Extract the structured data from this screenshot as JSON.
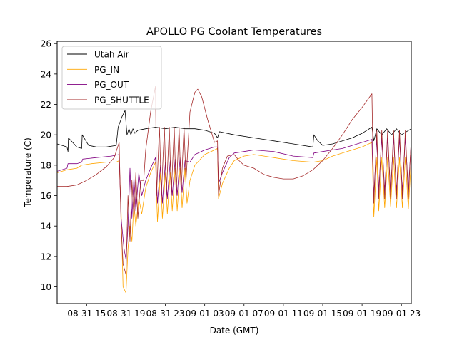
{
  "chart_data": {
    "type": "line",
    "title": "APOLLO PG Coolant Temperatures",
    "xlabel": "Date (GMT)",
    "ylabel": "Temperature (C)",
    "xlim_hours_from_0831_0000": [
      12,
      48
    ],
    "ylim": [
      8.9,
      26.15
    ],
    "grid": false,
    "legend_placement": "top-left",
    "x_ticks": [
      {
        "hour": 15,
        "label": "08-31 15"
      },
      {
        "hour": 19,
        "label": "08-31 19"
      },
      {
        "hour": 23,
        "label": "08-31 23"
      },
      {
        "hour": 27,
        "label": "09-01 03"
      },
      {
        "hour": 31,
        "label": "09-01 07"
      },
      {
        "hour": 35,
        "label": "09-01 11"
      },
      {
        "hour": 39,
        "label": "09-01 15"
      },
      {
        "hour": 43,
        "label": "09-01 19"
      },
      {
        "hour": 47,
        "label": "09-01 23"
      }
    ],
    "y_ticks": [
      10,
      12,
      14,
      16,
      18,
      20,
      22,
      24,
      26
    ],
    "series": [
      {
        "name": "Utah Air",
        "color": "#000000",
        "points": [
          [
            12,
            19.4
          ],
          [
            13,
            19.2
          ],
          [
            13.1,
            18.9
          ],
          [
            13.15,
            19.8
          ],
          [
            14,
            19.2
          ],
          [
            14.5,
            19.1
          ],
          [
            14.55,
            20.0
          ],
          [
            15.2,
            19.3
          ],
          [
            16,
            19.2
          ],
          [
            17,
            19.2
          ],
          [
            18,
            19.3
          ],
          [
            18.2,
            20.5
          ],
          [
            18.6,
            21.2
          ],
          [
            18.9,
            21.6
          ],
          [
            19.1,
            20.0
          ],
          [
            19.3,
            20.4
          ],
          [
            19.5,
            20.0
          ],
          [
            19.7,
            20.4
          ],
          [
            19.9,
            20.1
          ],
          [
            20.2,
            20.3
          ],
          [
            21,
            20.4
          ],
          [
            22,
            20.5
          ],
          [
            23,
            20.4
          ],
          [
            24,
            20.5
          ],
          [
            25,
            20.4
          ],
          [
            26,
            20.4
          ],
          [
            27,
            20.3
          ],
          [
            27.5,
            20.2
          ],
          [
            28,
            20.1
          ],
          [
            28.3,
            19.8
          ],
          [
            28.5,
            20.2
          ],
          [
            30,
            20.0
          ],
          [
            32,
            19.8
          ],
          [
            34,
            19.6
          ],
          [
            36,
            19.4
          ],
          [
            37,
            19.3
          ],
          [
            38,
            19.2
          ],
          [
            38.1,
            20.0
          ],
          [
            38.5,
            19.6
          ],
          [
            39,
            19.3
          ],
          [
            40,
            19.4
          ],
          [
            41,
            19.6
          ],
          [
            42,
            19.8
          ],
          [
            43,
            20.1
          ],
          [
            44,
            20.5
          ],
          [
            44.2,
            19.6
          ],
          [
            44.5,
            20.4
          ],
          [
            45,
            20.0
          ],
          [
            45.5,
            20.4
          ],
          [
            46,
            20.0
          ],
          [
            46.5,
            20.4
          ],
          [
            47,
            20.0
          ],
          [
            48,
            20.4
          ]
        ]
      },
      {
        "name": "PG_IN",
        "color": "#ffa500",
        "points": [
          [
            12,
            17.5
          ],
          [
            13,
            17.7
          ],
          [
            14,
            17.8
          ],
          [
            14.5,
            18.0
          ],
          [
            15.5,
            18.1
          ],
          [
            17,
            18.2
          ],
          [
            18,
            18.2
          ],
          [
            18.3,
            18.3
          ],
          [
            18.5,
            15.0
          ],
          [
            18.7,
            10.0
          ],
          [
            19.0,
            9.6
          ],
          [
            19.2,
            12.5
          ],
          [
            19.4,
            14.0
          ],
          [
            19.6,
            13.0
          ],
          [
            19.8,
            15.5
          ],
          [
            20.0,
            14.0
          ],
          [
            20.3,
            15.8
          ],
          [
            20.6,
            14.8
          ],
          [
            21,
            16.5
          ],
          [
            21.5,
            17.5
          ],
          [
            22,
            18.2
          ],
          [
            22.2,
            14.3
          ],
          [
            22.5,
            17.5
          ],
          [
            22.7,
            14.5
          ],
          [
            23,
            17.5
          ],
          [
            23.2,
            14.8
          ],
          [
            23.5,
            17.5
          ],
          [
            23.7,
            15.0
          ],
          [
            24,
            17.8
          ],
          [
            24.2,
            15.0
          ],
          [
            24.5,
            17.8
          ],
          [
            24.7,
            15.2
          ],
          [
            25,
            17.8
          ],
          [
            25.2,
            15.5
          ],
          [
            25.5,
            17.0
          ],
          [
            26,
            18.0
          ],
          [
            27,
            18.7
          ],
          [
            28,
            19.0
          ],
          [
            28.3,
            19.1
          ],
          [
            28.4,
            15.8
          ],
          [
            28.8,
            16.8
          ],
          [
            29.5,
            17.8
          ],
          [
            30,
            18.3
          ],
          [
            31,
            18.6
          ],
          [
            32,
            18.7
          ],
          [
            34,
            18.5
          ],
          [
            36,
            18.3
          ],
          [
            38,
            18.2
          ],
          [
            39,
            18.3
          ],
          [
            40,
            18.6
          ],
          [
            41,
            18.8
          ],
          [
            42,
            19.0
          ],
          [
            43,
            19.2
          ],
          [
            44,
            19.5
          ],
          [
            44.2,
            14.6
          ],
          [
            44.5,
            18.5
          ],
          [
            44.7,
            15.0
          ],
          [
            45,
            18.5
          ],
          [
            45.3,
            15.2
          ],
          [
            45.6,
            18.5
          ],
          [
            45.9,
            15.3
          ],
          [
            46.2,
            18.5
          ],
          [
            46.5,
            15.2
          ],
          [
            46.8,
            18.5
          ],
          [
            47.1,
            15.2
          ],
          [
            47.4,
            18.5
          ],
          [
            47.7,
            15.1
          ],
          [
            48,
            18.4
          ]
        ]
      },
      {
        "name": "PG_OUT",
        "color": "#800080",
        "points": [
          [
            12,
            17.6
          ],
          [
            13,
            17.8
          ],
          [
            13.1,
            18.1
          ],
          [
            14,
            18.1
          ],
          [
            14.5,
            18.2
          ],
          [
            14.6,
            18.4
          ],
          [
            16,
            18.5
          ],
          [
            17.5,
            18.6
          ],
          [
            18.3,
            18.7
          ],
          [
            18.5,
            14.5
          ],
          [
            18.8,
            12.5
          ],
          [
            19.0,
            11.8
          ],
          [
            19.2,
            14.0
          ],
          [
            19.4,
            17.8
          ],
          [
            19.6,
            14.5
          ],
          [
            19.8,
            17.2
          ],
          [
            20.0,
            15.0
          ],
          [
            20.3,
            17.5
          ],
          [
            20.6,
            16.0
          ],
          [
            21,
            17.0
          ],
          [
            21.5,
            17.8
          ],
          [
            22,
            18.5
          ],
          [
            22.2,
            15.5
          ],
          [
            22.5,
            18.0
          ],
          [
            22.7,
            15.5
          ],
          [
            23,
            18.2
          ],
          [
            23.2,
            15.8
          ],
          [
            23.5,
            18.3
          ],
          [
            23.7,
            16.0
          ],
          [
            24,
            18.4
          ],
          [
            24.2,
            16.0
          ],
          [
            24.5,
            18.5
          ],
          [
            24.7,
            16.2
          ],
          [
            25,
            18.3
          ],
          [
            25.5,
            18.2
          ],
          [
            26,
            18.7
          ],
          [
            27,
            19.0
          ],
          [
            28,
            19.2
          ],
          [
            28.3,
            19.2
          ],
          [
            28.4,
            16.8
          ],
          [
            28.8,
            17.5
          ],
          [
            29.5,
            18.5
          ],
          [
            30,
            18.8
          ],
          [
            31,
            18.9
          ],
          [
            32,
            19.0
          ],
          [
            34,
            18.9
          ],
          [
            36,
            18.6
          ],
          [
            38,
            18.5
          ],
          [
            38.1,
            18.8
          ],
          [
            39,
            18.9
          ],
          [
            40,
            19.0
          ],
          [
            41,
            19.1
          ],
          [
            42,
            19.3
          ],
          [
            43,
            19.5
          ],
          [
            44,
            19.7
          ],
          [
            44.2,
            16.0
          ],
          [
            44.5,
            19.8
          ],
          [
            44.7,
            16.3
          ],
          [
            45,
            19.8
          ],
          [
            45.3,
            16.3
          ],
          [
            45.6,
            19.8
          ],
          [
            45.9,
            16.3
          ],
          [
            46.2,
            19.8
          ],
          [
            46.5,
            16.3
          ],
          [
            46.8,
            19.8
          ],
          [
            47.1,
            16.3
          ],
          [
            47.4,
            19.8
          ],
          [
            47.7,
            16.3
          ],
          [
            48,
            19.6
          ]
        ]
      },
      {
        "name": "PG_SHUTTLE",
        "color": "#a52a2a",
        "points": [
          [
            12,
            16.6
          ],
          [
            13,
            16.6
          ],
          [
            14,
            16.7
          ],
          [
            15,
            17.0
          ],
          [
            16,
            17.4
          ],
          [
            17,
            17.9
          ],
          [
            17.8,
            18.5
          ],
          [
            18.3,
            19.5
          ],
          [
            18.5,
            14.0
          ],
          [
            18.7,
            11.5
          ],
          [
            19.0,
            10.8
          ],
          [
            19.2,
            16.0
          ],
          [
            19.4,
            13.0
          ],
          [
            19.6,
            17.0
          ],
          [
            19.8,
            14.5
          ],
          [
            20.0,
            17.5
          ],
          [
            20.2,
            14.5
          ],
          [
            20.5,
            17.0
          ],
          [
            20.8,
            17.0
          ],
          [
            21,
            19.0
          ],
          [
            21.5,
            21.5
          ],
          [
            22,
            23.2
          ],
          [
            22.1,
            16.0
          ],
          [
            22.4,
            20.5
          ],
          [
            22.6,
            16.0
          ],
          [
            22.9,
            20.5
          ],
          [
            23.1,
            16.0
          ],
          [
            23.4,
            20.5
          ],
          [
            23.6,
            16.0
          ],
          [
            23.9,
            20.5
          ],
          [
            24.1,
            16.0
          ],
          [
            24.4,
            20.5
          ],
          [
            24.6,
            16.2
          ],
          [
            24.9,
            20.5
          ],
          [
            25.1,
            17.0
          ],
          [
            25.5,
            21.5
          ],
          [
            26,
            22.8
          ],
          [
            26.3,
            23.0
          ],
          [
            26.7,
            22.5
          ],
          [
            27.3,
            21.0
          ],
          [
            28,
            19.5
          ],
          [
            28.3,
            19.6
          ],
          [
            28.4,
            16.0
          ],
          [
            28.8,
            17.8
          ],
          [
            29.3,
            18.6
          ],
          [
            30,
            18.7
          ],
          [
            30.5,
            18.3
          ],
          [
            31,
            18.0
          ],
          [
            32,
            17.8
          ],
          [
            33,
            17.4
          ],
          [
            34,
            17.2
          ],
          [
            35,
            17.1
          ],
          [
            36,
            17.1
          ],
          [
            37,
            17.3
          ],
          [
            38,
            17.7
          ],
          [
            39,
            18.3
          ],
          [
            40,
            19.1
          ],
          [
            41,
            20.0
          ],
          [
            42,
            21.0
          ],
          [
            43,
            21.8
          ],
          [
            44,
            22.7
          ],
          [
            44.2,
            15.5
          ],
          [
            44.5,
            20.3
          ],
          [
            44.7,
            15.8
          ],
          [
            45,
            20.3
          ],
          [
            45.3,
            15.8
          ],
          [
            45.6,
            20.3
          ],
          [
            45.9,
            15.8
          ],
          [
            46.2,
            20.3
          ],
          [
            46.5,
            15.8
          ],
          [
            46.8,
            20.3
          ],
          [
            47.1,
            15.8
          ],
          [
            47.4,
            20.3
          ],
          [
            47.7,
            15.8
          ],
          [
            48,
            19.8
          ]
        ]
      }
    ]
  }
}
